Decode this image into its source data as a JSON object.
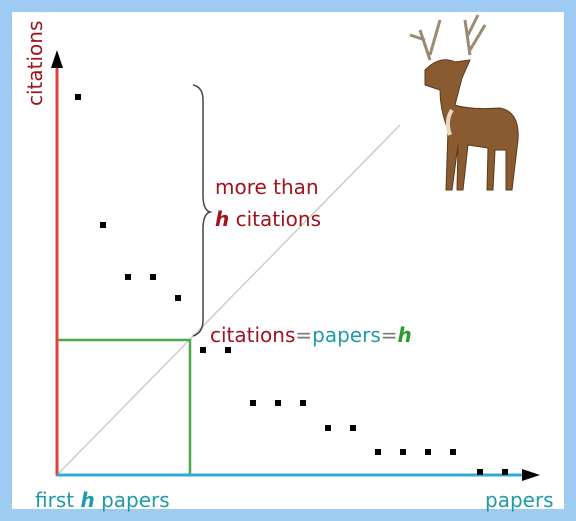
{
  "axes": {
    "y": "citations",
    "x": "papers"
  },
  "bottom_label": {
    "pre": "first",
    "h": "h",
    "post": "papers"
  },
  "brace_label": {
    "line1": "more than",
    "h": "h",
    "line2": "citations"
  },
  "equation": {
    "a": "citations",
    "eq1": "=",
    "b": "papers",
    "eq2": "=",
    "h": "h"
  }
}
